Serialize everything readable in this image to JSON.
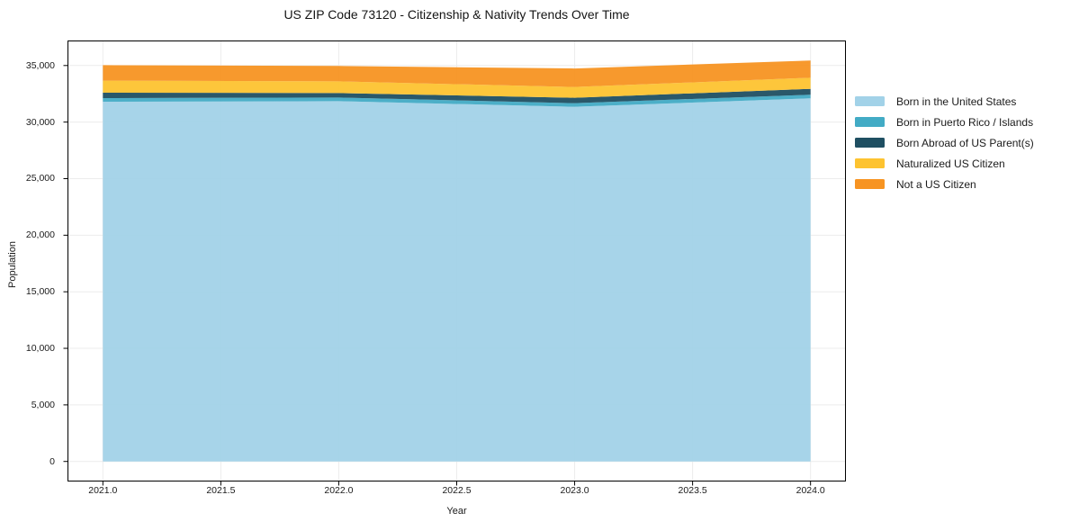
{
  "chart_data": {
    "type": "area",
    "stacked": true,
    "title": "US ZIP Code 73120 - Citizenship & Nativity Trends Over Time",
    "xlabel": "Year",
    "ylabel": "Population",
    "x": [
      2021,
      2022,
      2023,
      2024
    ],
    "series": [
      {
        "name": "Born in the United States",
        "color": "#a2d2e8",
        "values": [
          31800,
          31850,
          31350,
          32100
        ]
      },
      {
        "name": "Born in Puerto Rico / Islands",
        "color": "#42abc5",
        "values": [
          320,
          320,
          320,
          320
        ]
      },
      {
        "name": "Born Abroad of US Parent(s)",
        "color": "#1f4f62",
        "values": [
          480,
          400,
          480,
          520
        ]
      },
      {
        "name": "Naturalized US Citizen",
        "color": "#fdc330",
        "values": [
          1060,
          1030,
          950,
          980
        ]
      },
      {
        "name": "Not a US Citizen",
        "color": "#f79422",
        "values": [
          1370,
          1360,
          1640,
          1520
        ]
      }
    ],
    "xlim": [
      2020.85,
      2024.15
    ],
    "ylim": [
      -1772,
      37212
    ],
    "x_ticks": {
      "values": [
        2021.0,
        2021.5,
        2022.0,
        2022.5,
        2023.0,
        2023.5,
        2024.0
      ],
      "labels": [
        "2021.0",
        "2021.5",
        "2022.0",
        "2022.5",
        "2023.0",
        "2023.5",
        "2024.0"
      ]
    },
    "y_ticks": {
      "values": [
        0,
        5000,
        10000,
        15000,
        20000,
        25000,
        30000,
        35000
      ],
      "labels": [
        "0",
        "5,000",
        "10,000",
        "15,000",
        "20,000",
        "25,000",
        "30,000",
        "35,000"
      ]
    },
    "grid": true,
    "grid_color": "#ececec",
    "spine_color": "#000000",
    "background": "#ffffff",
    "legend_position": "right"
  }
}
